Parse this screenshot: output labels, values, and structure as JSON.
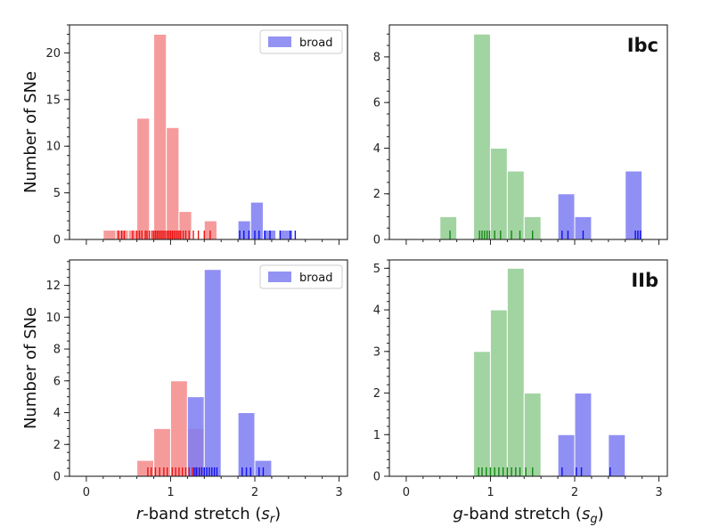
{
  "chart_data": [
    {
      "type": "bar",
      "panel": "top-left",
      "xlabel": "",
      "ylabel": "Number of SNe",
      "xlim": [
        -0.2,
        3.1
      ],
      "ylim": [
        0,
        23
      ],
      "xticks": [
        0,
        1,
        2,
        3
      ],
      "xtick_labels_visible": false,
      "yticks": [
        0,
        5,
        10,
        15,
        20
      ],
      "legend": {
        "entries": [
          {
            "name": "broad",
            "color": "#6f6ff0"
          }
        ],
        "placement": "top-right"
      },
      "bin_width": 0.15,
      "series": [
        {
          "name": "",
          "color": "#f48a8a",
          "bars": [
            {
              "x": 0.2,
              "h": 1
            },
            {
              "x": 0.35,
              "h": 1
            },
            {
              "x": 0.5,
              "h": 1
            },
            {
              "x": 0.6,
              "h": 13
            },
            {
              "x": 0.8,
              "h": 22
            },
            {
              "x": 0.95,
              "h": 12
            },
            {
              "x": 1.1,
              "h": 3
            },
            {
              "x": 1.4,
              "h": 2
            }
          ],
          "rug_color": "#ee1111",
          "rug": [
            0.38,
            0.42,
            0.45,
            0.55,
            0.6,
            0.63,
            0.66,
            0.7,
            0.72,
            0.75,
            0.78,
            0.8,
            0.82,
            0.84,
            0.86,
            0.88,
            0.9,
            0.92,
            0.94,
            0.96,
            0.98,
            1.0,
            1.02,
            1.04,
            1.06,
            1.08,
            1.1,
            1.12,
            1.15,
            1.18,
            1.22,
            1.27,
            1.33,
            1.4,
            1.47
          ]
        },
        {
          "name": "broad",
          "color": "#7d7df2",
          "bars": [
            {
              "x": 1.8,
              "h": 2
            },
            {
              "x": 1.95,
              "h": 4
            },
            {
              "x": 2.1,
              "h": 1
            },
            {
              "x": 2.3,
              "h": 1
            }
          ],
          "rug_color": "#1111ee",
          "rug": [
            1.82,
            1.87,
            1.93,
            2.0,
            2.05,
            2.12,
            2.18,
            2.3,
            2.42,
            2.48
          ]
        }
      ]
    },
    {
      "type": "bar",
      "panel": "top-right",
      "tag": "Ibc",
      "xlabel": "",
      "ylabel": "",
      "xlim": [
        -0.2,
        3.1
      ],
      "ylim": [
        0,
        9.4
      ],
      "xticks": [
        0,
        1,
        2,
        3
      ],
      "xtick_labels_visible": false,
      "yticks": [
        0,
        2,
        4,
        6,
        8
      ],
      "bin_width": 0.2,
      "series": [
        {
          "name": "",
          "color": "#92cc92",
          "bars": [
            {
              "x": 0.4,
              "h": 1
            },
            {
              "x": 0.8,
              "h": 9
            },
            {
              "x": 1.0,
              "h": 4
            },
            {
              "x": 1.2,
              "h": 3
            },
            {
              "x": 1.4,
              "h": 1
            }
          ],
          "rug_color": "#118811",
          "rug": [
            0.52,
            0.87,
            0.9,
            0.93,
            0.96,
            0.99,
            1.05,
            1.12,
            1.25,
            1.35,
            1.5
          ]
        },
        {
          "name": "",
          "color": "#7d7df2",
          "bars": [
            {
              "x": 1.8,
              "h": 2
            },
            {
              "x": 2.0,
              "h": 1
            },
            {
              "x": 2.6,
              "h": 3
            }
          ],
          "rug_color": "#1111ee",
          "rug": [
            1.85,
            1.92,
            2.1,
            2.72,
            2.75,
            2.78
          ]
        }
      ]
    },
    {
      "type": "bar",
      "panel": "bottom-left",
      "xlabel": "r-band stretch (s_r)",
      "ylabel": "Number of SNe",
      "xlim": [
        -0.2,
        3.1
      ],
      "ylim": [
        0,
        13.6
      ],
      "xticks": [
        0,
        1,
        2,
        3
      ],
      "yticks": [
        0,
        2,
        4,
        6,
        8,
        10,
        12
      ],
      "legend": {
        "entries": [
          {
            "name": "broad",
            "color": "#6f6ff0"
          }
        ],
        "placement": "top-right"
      },
      "bin_width": 0.2,
      "series": [
        {
          "name": "",
          "color": "#f48a8a",
          "bars": [
            {
              "x": 0.6,
              "h": 1
            },
            {
              "x": 0.8,
              "h": 3
            },
            {
              "x": 1.0,
              "h": 6
            },
            {
              "x": 1.2,
              "h": 3
            }
          ],
          "rug_color": "#ee1111",
          "rug": [
            0.73,
            0.77,
            0.82,
            0.87,
            0.92,
            0.96,
            1.02,
            1.06,
            1.1,
            1.14,
            1.18,
            1.22,
            1.26,
            1.3,
            1.34
          ]
        },
        {
          "name": "broad",
          "color": "#7d7df2",
          "bars": [
            {
              "x": 1.2,
              "h": 5
            },
            {
              "x": 1.4,
              "h": 13
            },
            {
              "x": 1.8,
              "h": 4
            },
            {
              "x": 2.0,
              "h": 1
            }
          ],
          "rug_color": "#1111ee",
          "rug": [
            1.28,
            1.31,
            1.34,
            1.37,
            1.4,
            1.43,
            1.46,
            1.49,
            1.52,
            1.55,
            1.85,
            1.9,
            1.95,
            2.05,
            2.1
          ]
        }
      ]
    },
    {
      "type": "bar",
      "panel": "bottom-right",
      "tag": "IIb",
      "xlabel": "g-band stretch (s_g)",
      "ylabel": "",
      "xlim": [
        -0.2,
        3.1
      ],
      "ylim": [
        0,
        5.2
      ],
      "xticks": [
        0,
        1,
        2,
        3
      ],
      "yticks": [
        0,
        1,
        2,
        3,
        4,
        5
      ],
      "bin_width": 0.2,
      "series": [
        {
          "name": "",
          "color": "#92cc92",
          "bars": [
            {
              "x": 0.8,
              "h": 3
            },
            {
              "x": 1.0,
              "h": 4
            },
            {
              "x": 1.2,
              "h": 5
            },
            {
              "x": 1.4,
              "h": 2
            }
          ],
          "rug_color": "#118811",
          "rug": [
            0.86,
            0.9,
            0.95,
            1.0,
            1.05,
            1.1,
            1.15,
            1.2,
            1.25,
            1.3,
            1.35,
            1.42,
            1.5
          ]
        },
        {
          "name": "",
          "color": "#7d7df2",
          "bars": [
            {
              "x": 1.8,
              "h": 1
            },
            {
              "x": 2.0,
              "h": 2
            },
            {
              "x": 2.4,
              "h": 1
            }
          ],
          "rug_color": "#1111ee",
          "rug": [
            1.85,
            2.02,
            2.08,
            2.42
          ]
        }
      ]
    }
  ]
}
